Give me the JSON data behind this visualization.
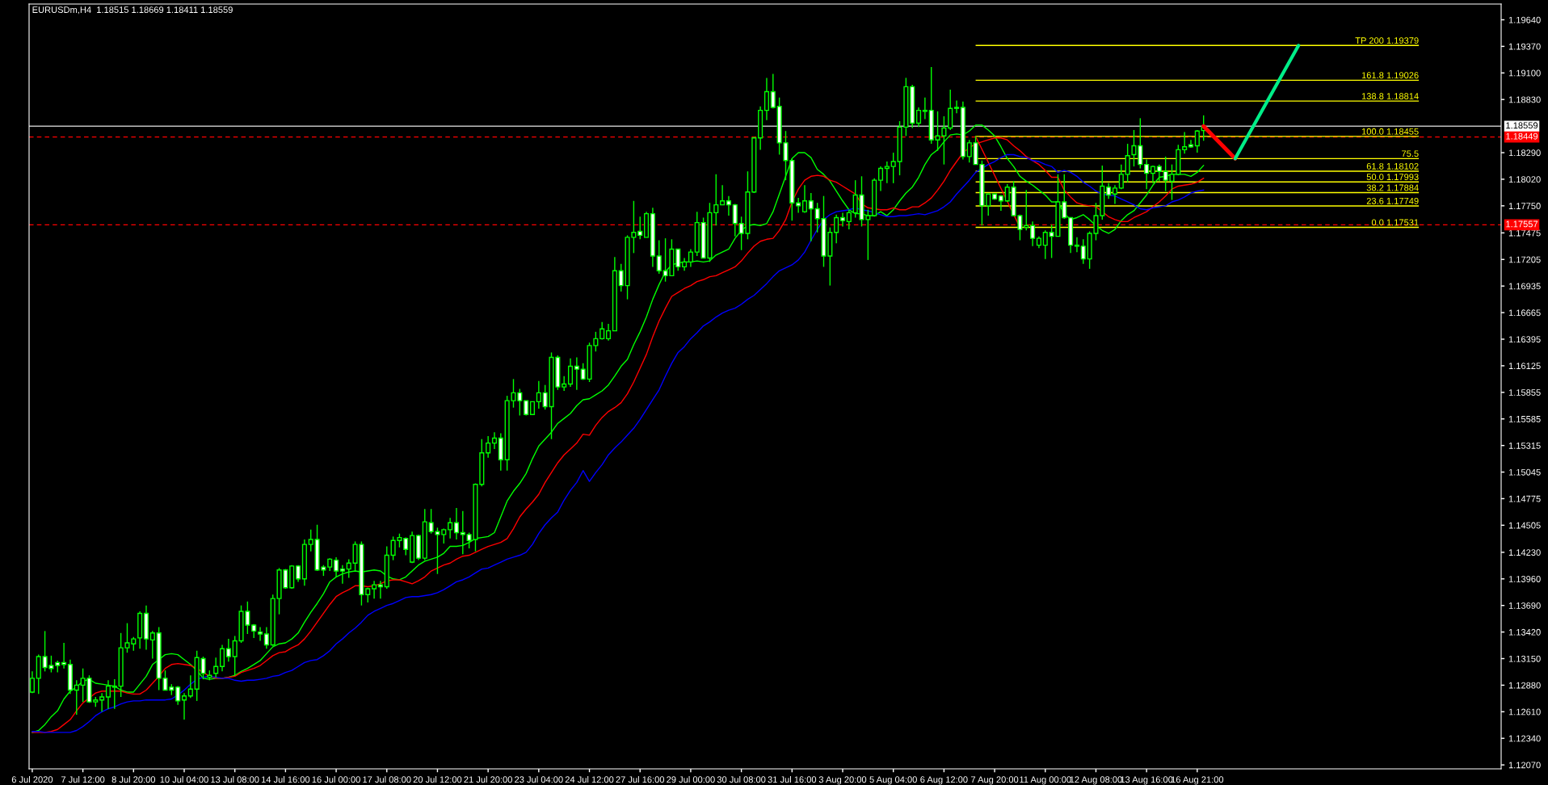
{
  "chart_data": {
    "type": "candlestick",
    "title": "EURUSDm,H4  1.18515 1.18669 1.18411 1.18559",
    "categories": [
      "6 Jul 2020",
      null,
      null,
      null,
      null,
      null,
      null,
      null,
      "7 Jul 12:00",
      null,
      null,
      null,
      null,
      null,
      null,
      null,
      "8 Jul 20:00",
      null,
      null,
      null,
      null,
      null,
      null,
      null,
      "10 Jul 04:00",
      null,
      null,
      null,
      null,
      null,
      null,
      null,
      "13 Jul 08:00",
      null,
      null,
      null,
      null,
      null,
      null,
      null,
      "14 Jul 16:00",
      null,
      null,
      null,
      null,
      null,
      null,
      null,
      "16 Jul 00:00",
      null,
      null,
      null,
      null,
      null,
      null,
      null,
      "17 Jul 08:00",
      null,
      null,
      null,
      null,
      null,
      null,
      null,
      "20 Jul 12:00",
      null,
      null,
      null,
      null,
      null,
      null,
      null,
      "21 Jul 20:00",
      null,
      null,
      null,
      null,
      null,
      null,
      null,
      "23 Jul 04:00",
      null,
      null,
      null,
      null,
      null,
      null,
      null,
      "24 Jul 12:00",
      null,
      null,
      null,
      null,
      null,
      null,
      null,
      "27 Jul 16:00",
      null,
      null,
      null,
      null,
      null,
      null,
      null,
      "29 Jul 00:00",
      null,
      null,
      null,
      null,
      null,
      null,
      null,
      "30 Jul 08:00",
      null,
      null,
      null,
      null,
      null,
      null,
      null,
      "31 Jul 16:00",
      null,
      null,
      null,
      null,
      null,
      null,
      null,
      "3 Aug 20:00",
      null,
      null,
      null,
      null,
      null,
      null,
      null,
      "5 Aug 04:00",
      null,
      null,
      null,
      null,
      null,
      null,
      null,
      "6 Aug 12:00",
      null,
      null,
      null,
      null,
      null,
      null,
      null,
      "7 Aug 20:00",
      null,
      null,
      null,
      null,
      null,
      null,
      null,
      "11 Aug 00:00",
      null,
      null,
      null,
      null,
      null,
      null,
      null,
      "12 Aug 08:00",
      null,
      null,
      null,
      null,
      null,
      null,
      null,
      "13 Aug 16:00",
      null,
      null,
      null,
      null,
      null,
      null,
      null,
      "16 Aug 21:00",
      null
    ],
    "series": [
      {
        "type": "candlestick",
        "color": "#00ff00",
        "ohlc": [
          [
            1.1281,
            1.1302,
            1.128,
            1.1295
          ],
          [
            1.1295,
            1.1319,
            1.1279,
            1.1317
          ],
          [
            1.1317,
            1.1343,
            1.1302,
            1.1306
          ],
          [
            1.1308,
            1.1318,
            1.1301,
            1.1305
          ],
          [
            1.1311,
            1.1313,
            1.1301,
            1.1308
          ],
          [
            1.1311,
            1.1331,
            1.1305,
            1.1309
          ],
          [
            1.1309,
            1.1314,
            1.1279,
            1.1283
          ],
          [
            1.1283,
            1.1293,
            1.1258,
            1.1288
          ],
          [
            1.1288,
            1.1305,
            1.1271,
            1.1295
          ],
          [
            1.1295,
            1.1298,
            1.127,
            1.1271
          ],
          [
            1.1271,
            1.1276,
            1.1266,
            1.1273
          ],
          [
            1.1273,
            1.128,
            1.1261,
            1.1276
          ],
          [
            1.1276,
            1.1293,
            1.1264,
            1.1287
          ],
          [
            1.1287,
            1.1294,
            1.1264,
            1.1286
          ],
          [
            1.1287,
            1.1341,
            1.1276,
            1.1326
          ],
          [
            1.1326,
            1.1351,
            1.1321,
            1.1331
          ],
          [
            1.133,
            1.1337,
            1.1323,
            1.1335
          ],
          [
            1.1336,
            1.1363,
            1.1325,
            1.1361
          ],
          [
            1.1361,
            1.1369,
            1.1324,
            1.1335
          ],
          [
            1.1334,
            1.1343,
            1.1315,
            1.1341
          ],
          [
            1.1341,
            1.1347,
            1.1283,
            1.1295
          ],
          [
            1.1295,
            1.1303,
            1.1283,
            1.1283
          ],
          [
            1.1286,
            1.1289,
            1.1278,
            1.1283
          ],
          [
            1.1286,
            1.1287,
            1.1268,
            1.1272
          ],
          [
            1.1273,
            1.128,
            1.1253,
            1.1277
          ],
          [
            1.1277,
            1.1298,
            1.1275,
            1.1284
          ],
          [
            1.1284,
            1.1323,
            1.1272,
            1.1316
          ],
          [
            1.1315,
            1.1317,
            1.1294,
            1.13
          ],
          [
            1.1296,
            1.1303,
            1.1293,
            1.1298
          ],
          [
            1.13,
            1.1316,
            1.1296,
            1.1307
          ],
          [
            1.1307,
            1.1329,
            1.1302,
            1.1325
          ],
          [
            1.1325,
            1.1335,
            1.1312,
            1.1317
          ],
          [
            1.1317,
            1.1338,
            1.1298,
            1.1333
          ],
          [
            1.1333,
            1.1369,
            1.1331,
            1.1363
          ],
          [
            1.1363,
            1.1373,
            1.134,
            1.1349
          ],
          [
            1.1349,
            1.135,
            1.1336,
            1.1343
          ],
          [
            1.1342,
            1.1347,
            1.1333,
            1.134
          ],
          [
            1.134,
            1.1347,
            1.1325,
            1.1329
          ],
          [
            1.1329,
            1.138,
            1.1328,
            1.1376
          ],
          [
            1.1376,
            1.1407,
            1.136,
            1.1405
          ],
          [
            1.1405,
            1.1406,
            1.1386,
            1.1387
          ],
          [
            1.1387,
            1.141,
            1.1386,
            1.1409
          ],
          [
            1.1409,
            1.141,
            1.1393,
            1.1396
          ],
          [
            1.1396,
            1.1436,
            1.1389,
            1.1431
          ],
          [
            1.1431,
            1.1446,
            1.1424,
            1.1436
          ],
          [
            1.1436,
            1.1451,
            1.1404,
            1.1405
          ],
          [
            1.1408,
            1.141,
            1.1399,
            1.1405
          ],
          [
            1.1408,
            1.1417,
            1.1404,
            1.1416
          ],
          [
            1.1415,
            1.1418,
            1.1398,
            1.1404
          ],
          [
            1.1406,
            1.141,
            1.1391,
            1.1404
          ],
          [
            1.1406,
            1.1416,
            1.1397,
            1.1412
          ],
          [
            1.1412,
            1.1434,
            1.1404,
            1.1431
          ],
          [
            1.1431,
            1.1434,
            1.1369,
            1.138
          ],
          [
            1.138,
            1.1387,
            1.1372,
            1.1386
          ],
          [
            1.1386,
            1.1394,
            1.1376,
            1.139
          ],
          [
            1.139,
            1.1394,
            1.1376,
            1.1388
          ],
          [
            1.1388,
            1.1429,
            1.1386,
            1.142
          ],
          [
            1.142,
            1.1439,
            1.1415,
            1.1435
          ],
          [
            1.1435,
            1.1442,
            1.1428,
            1.1438
          ],
          [
            1.1437,
            1.1438,
            1.142,
            1.1426
          ],
          [
            1.1413,
            1.1444,
            1.1412,
            1.144
          ],
          [
            1.144,
            1.1441,
            1.1415,
            1.1417
          ],
          [
            1.1417,
            1.1467,
            1.1415,
            1.1454
          ],
          [
            1.1453,
            1.1467,
            1.1442,
            1.1444
          ],
          [
            1.1444,
            1.1448,
            1.1401,
            1.1441
          ],
          [
            1.1441,
            1.1447,
            1.1432,
            1.1446
          ],
          [
            1.1446,
            1.1458,
            1.1437,
            1.1453
          ],
          [
            1.1453,
            1.1468,
            1.1436,
            1.1443
          ],
          [
            1.1443,
            1.1465,
            1.1421,
            1.1441
          ],
          [
            1.1441,
            1.1443,
            1.1427,
            1.1435
          ],
          [
            1.1436,
            1.1493,
            1.1424,
            1.1492
          ],
          [
            1.1492,
            1.1538,
            1.149,
            1.1524
          ],
          [
            1.1524,
            1.1541,
            1.1519,
            1.1534
          ],
          [
            1.1534,
            1.1545,
            1.1528,
            1.1539
          ],
          [
            1.1539,
            1.1544,
            1.1506,
            1.1517
          ],
          [
            1.1517,
            1.1582,
            1.1506,
            1.1577
          ],
          [
            1.1577,
            1.1599,
            1.157,
            1.1585
          ],
          [
            1.1585,
            1.1589,
            1.1562,
            1.1577
          ],
          [
            1.1577,
            1.1577,
            1.1562,
            1.1563
          ],
          [
            1.1563,
            1.1576,
            1.1563,
            1.1576
          ],
          [
            1.1576,
            1.1597,
            1.1569,
            1.1585
          ],
          [
            1.1585,
            1.1593,
            1.1568,
            1.1571
          ],
          [
            1.1571,
            1.1626,
            1.1538,
            1.1621
          ],
          [
            1.1621,
            1.1623,
            1.1588,
            1.1591
          ],
          [
            1.1591,
            1.1602,
            1.1587,
            1.1594
          ],
          [
            1.1594,
            1.162,
            1.1591,
            1.1612
          ],
          [
            1.1612,
            1.1621,
            1.1588,
            1.1609
          ],
          [
            1.1609,
            1.1615,
            1.1598,
            1.1599
          ],
          [
            1.1599,
            1.1636,
            1.1596,
            1.1633
          ],
          [
            1.1633,
            1.1647,
            1.1627,
            1.164
          ],
          [
            1.164,
            1.1657,
            1.1639,
            1.165
          ],
          [
            1.164,
            1.1655,
            1.1638,
            1.1648
          ],
          [
            1.1648,
            1.1723,
            1.1648,
            1.1709
          ],
          [
            1.1709,
            1.1716,
            1.1688,
            1.1694
          ],
          [
            1.1694,
            1.1745,
            1.168,
            1.1743
          ],
          [
            1.1743,
            1.178,
            1.1727,
            1.1748
          ],
          [
            1.1749,
            1.1764,
            1.1741,
            1.1745
          ],
          [
            1.1743,
            1.1769,
            1.1743,
            1.1767
          ],
          [
            1.1767,
            1.1773,
            1.1713,
            1.1724
          ],
          [
            1.1724,
            1.174,
            1.1706,
            1.1709
          ],
          [
            1.1709,
            1.1742,
            1.1698,
            1.1704
          ],
          [
            1.1704,
            1.1741,
            1.1704,
            1.1731
          ],
          [
            1.1731,
            1.1731,
            1.1709,
            1.1713
          ],
          [
            1.1713,
            1.1722,
            1.1709,
            1.1718
          ],
          [
            1.1718,
            1.1731,
            1.1713,
            1.1728
          ],
          [
            1.1728,
            1.1769,
            1.1724,
            1.1758
          ],
          [
            1.1758,
            1.1763,
            1.1722,
            1.1722
          ],
          [
            1.1722,
            1.1778,
            1.1718,
            1.1768
          ],
          [
            1.1768,
            1.1807,
            1.1755,
            1.1776
          ],
          [
            1.1776,
            1.1796,
            1.1776,
            1.178
          ],
          [
            1.178,
            1.1785,
            1.1765,
            1.1776
          ],
          [
            1.1776,
            1.1777,
            1.1744,
            1.1757
          ],
          [
            1.1757,
            1.1764,
            1.173,
            1.1747
          ],
          [
            1.1747,
            1.181,
            1.1741,
            1.1789
          ],
          [
            1.1789,
            1.1845,
            1.1788,
            1.1844
          ],
          [
            1.1844,
            1.1876,
            1.1832,
            1.1872
          ],
          [
            1.1872,
            1.1905,
            1.1862,
            1.1891
          ],
          [
            1.1891,
            1.1909,
            1.1874,
            1.1875
          ],
          [
            1.1876,
            1.1885,
            1.1827,
            1.1839
          ],
          [
            1.1839,
            1.1851,
            1.1801,
            1.1821
          ],
          [
            1.1821,
            1.1823,
            1.176,
            1.1778
          ],
          [
            1.1778,
            1.1783,
            1.1768,
            1.1775
          ],
          [
            1.1769,
            1.1796,
            1.1768,
            1.178
          ],
          [
            1.178,
            1.1788,
            1.1739,
            1.1772
          ],
          [
            1.1772,
            1.1778,
            1.1748,
            1.1762
          ],
          [
            1.1762,
            1.1785,
            1.1713,
            1.1724
          ],
          [
            1.1724,
            1.1753,
            1.1694,
            1.1748
          ],
          [
            1.1748,
            1.1766,
            1.1737,
            1.1763
          ],
          [
            1.1763,
            1.1768,
            1.1754,
            1.176
          ],
          [
            1.1759,
            1.1771,
            1.1751,
            1.1768
          ],
          [
            1.1768,
            1.1801,
            1.1763,
            1.1786
          ],
          [
            1.1786,
            1.1805,
            1.1754,
            1.1761
          ],
          [
            1.1761,
            1.1771,
            1.172,
            1.1765
          ],
          [
            1.1765,
            1.1803,
            1.1764,
            1.1801
          ],
          [
            1.1801,
            1.1815,
            1.179,
            1.1813
          ],
          [
            1.1813,
            1.182,
            1.1798,
            1.1815
          ],
          [
            1.1815,
            1.1829,
            1.1798,
            1.182
          ],
          [
            1.182,
            1.1861,
            1.1806,
            1.1855
          ],
          [
            1.1855,
            1.1905,
            1.1846,
            1.1896
          ],
          [
            1.1896,
            1.1898,
            1.1854,
            1.1859
          ],
          [
            1.1859,
            1.1875,
            1.1855,
            1.1872
          ],
          [
            1.1871,
            1.1885,
            1.1863,
            1.1872
          ],
          [
            1.1872,
            1.1916,
            1.1838,
            1.1842
          ],
          [
            1.1842,
            1.1871,
            1.1831,
            1.1846
          ],
          [
            1.1846,
            1.1866,
            1.1817,
            1.1854
          ],
          [
            1.1854,
            1.1893,
            1.1852,
            1.1874
          ],
          [
            1.1874,
            1.1882,
            1.1869,
            1.1875
          ],
          [
            1.1875,
            1.1881,
            1.1822,
            1.1825
          ],
          [
            1.1825,
            1.1842,
            1.1819,
            1.1839
          ],
          [
            1.1839,
            1.1846,
            1.1817,
            1.1817
          ],
          [
            1.1817,
            1.1821,
            1.1755,
            1.1775
          ],
          [
            1.1775,
            1.1787,
            1.1765,
            1.1787
          ],
          [
            1.1787,
            1.1787,
            1.1781,
            1.1782
          ],
          [
            1.1785,
            1.1786,
            1.177,
            1.178
          ],
          [
            1.178,
            1.1797,
            1.1779,
            1.1794
          ],
          [
            1.1794,
            1.18,
            1.1765,
            1.1765
          ],
          [
            1.1765,
            1.1766,
            1.174,
            1.1751
          ],
          [
            1.1753,
            1.1791,
            1.175,
            1.1755
          ],
          [
            1.1755,
            1.1759,
            1.1734,
            1.1742
          ],
          [
            1.1735,
            1.1744,
            1.1732,
            1.1742
          ],
          [
            1.1735,
            1.175,
            1.1721,
            1.1748
          ],
          [
            1.1748,
            1.1756,
            1.1722,
            1.1744
          ],
          [
            1.1744,
            1.1807,
            1.1744,
            1.1779
          ],
          [
            1.1779,
            1.1807,
            1.1762,
            1.1763
          ],
          [
            1.1763,
            1.1763,
            1.1727,
            1.1735
          ],
          [
            1.1734,
            1.1743,
            1.1728,
            1.1735
          ],
          [
            1.1734,
            1.1741,
            1.1716,
            1.1721
          ],
          [
            1.1721,
            1.1749,
            1.1711,
            1.1747
          ],
          [
            1.1747,
            1.1778,
            1.174,
            1.1765
          ],
          [
            1.1765,
            1.1816,
            1.1761,
            1.1795
          ],
          [
            1.1794,
            1.1798,
            1.1782,
            1.1786
          ],
          [
            1.1787,
            1.1796,
            1.1777,
            1.1793
          ],
          [
            1.1793,
            1.1817,
            1.1792,
            1.1807
          ],
          [
            1.1807,
            1.1838,
            1.1799,
            1.1826
          ],
          [
            1.1827,
            1.1852,
            1.1815,
            1.1836
          ],
          [
            1.1836,
            1.1864,
            1.1813,
            1.1817
          ],
          [
            1.1817,
            1.1822,
            1.1792,
            1.1808
          ],
          [
            1.1808,
            1.1816,
            1.1798,
            1.1815
          ],
          [
            1.1815,
            1.1817,
            1.18,
            1.181
          ],
          [
            1.181,
            1.1825,
            1.179,
            1.1801
          ],
          [
            1.18,
            1.1817,
            1.1781,
            1.1807
          ],
          [
            1.1807,
            1.1837,
            1.1806,
            1.1832
          ],
          [
            1.1832,
            1.185,
            1.1828,
            1.1835
          ],
          [
            1.1837,
            1.1842,
            1.1834,
            1.1835
          ],
          [
            1.1836,
            1.1852,
            1.1829,
            1.1851
          ],
          [
            1.18515,
            1.18669,
            1.18411,
            1.18559
          ]
        ]
      },
      {
        "type": "line",
        "color": "#00ff00",
        "values": [
          1.124,
          1.1242,
          1.1248,
          1.1256,
          1.1262,
          1.1274,
          1.1282,
          1.1286,
          1.1292,
          1.1294,
          1.129,
          1.1289,
          1.1288,
          1.1287,
          1.1283,
          1.1281,
          1.1281,
          1.1289,
          1.1297,
          1.1309,
          1.1314,
          1.1319,
          1.132,
          1.1319,
          1.1314,
          1.1309,
          1.1303,
          1.1295,
          1.1294,
          1.1295,
          1.1295,
          1.1296,
          1.1298,
          1.1302,
          1.1305,
          1.1309,
          1.1313,
          1.132,
          1.1327,
          1.133,
          1.1331,
          1.1335,
          1.1341,
          1.1352,
          1.1362,
          1.1371,
          1.1381,
          1.1393,
          1.1398,
          1.1401,
          1.1403,
          1.1404,
          1.1403,
          1.1404,
          1.1405,
          1.1404,
          1.1399,
          1.1396,
          1.1395,
          1.1398,
          1.1404,
          1.141,
          1.1414,
          1.1416,
          1.1418,
          1.1422,
          1.1429,
          1.1429,
          1.143,
          1.1433,
          1.1437,
          1.1438,
          1.1439,
          1.1443,
          1.1459,
          1.1475,
          1.1485,
          1.1493,
          1.1503,
          1.1518,
          1.1531,
          1.1538,
          1.1545,
          1.1554,
          1.1559,
          1.1564,
          1.1572,
          1.1578,
          1.1579,
          1.1583,
          1.1587,
          1.1593,
          1.1602,
          1.1612,
          1.1619,
          1.1634,
          1.1647,
          1.1662,
          1.168,
          1.1695,
          1.1708,
          1.1715,
          1.1717,
          1.1718,
          1.1718,
          1.1719,
          1.1718,
          1.1719,
          1.1725,
          1.1728,
          1.1731,
          1.1742,
          1.175,
          1.1755,
          1.1756,
          1.1755,
          1.1757,
          1.1769,
          1.1787,
          1.1805,
          1.1823,
          1.1829,
          1.1829,
          1.1824,
          1.1812,
          1.1807,
          1.18,
          1.179,
          1.178,
          1.1771,
          1.1767,
          1.1767,
          1.1765,
          1.1765,
          1.1769,
          1.1765,
          1.1771,
          1.178,
          1.1788,
          1.1794,
          1.1804,
          1.1817,
          1.1827,
          1.1832,
          1.184,
          1.1847,
          1.1848,
          1.1847,
          1.1851,
          1.1857,
          1.1857,
          1.1852,
          1.1846,
          1.1835,
          1.1823,
          1.1815,
          1.1805,
          1.18,
          1.1796,
          1.1791,
          1.1786,
          1.1779,
          1.1779,
          1.1767,
          1.1761,
          1.1763,
          1.1766,
          1.1761,
          1.1755,
          1.175,
          1.1747,
          1.1751,
          1.176,
          1.1766,
          1.177,
          1.1778,
          1.1786,
          1.1796,
          1.1804,
          1.1805,
          1.1807,
          1.1807,
          1.1807,
          1.1805,
          1.1809,
          1.1816
        ]
      },
      {
        "type": "line",
        "color": "#ff0000",
        "values": [
          1.124,
          1.124,
          1.124,
          1.1241,
          1.1243,
          1.1248,
          1.1253,
          1.1262,
          1.127,
          1.1275,
          1.128,
          1.1282,
          1.1282,
          1.1282,
          1.1282,
          1.128,
          1.1279,
          1.1279,
          1.1283,
          1.129,
          1.1297,
          1.1305,
          1.1309,
          1.131,
          1.1309,
          1.1308,
          1.1305,
          1.1301,
          1.1297,
          1.1295,
          1.1295,
          1.1296,
          1.1297,
          1.1301,
          1.1303,
          1.1305,
          1.1308,
          1.1313,
          1.1318,
          1.1321,
          1.1322,
          1.1326,
          1.1329,
          1.1335,
          1.1343,
          1.1352,
          1.1361,
          1.137,
          1.1378,
          1.1382,
          1.1385,
          1.1389,
          1.1389,
          1.1388,
          1.1389,
          1.1391,
          1.1394,
          1.1395,
          1.1395,
          1.1393,
          1.1391,
          1.1394,
          1.1398,
          1.1404,
          1.1407,
          1.141,
          1.1412,
          1.1416,
          1.1419,
          1.142,
          1.1423,
          1.1426,
          1.1429,
          1.1431,
          1.1433,
          1.1437,
          1.1447,
          1.1459,
          1.1467,
          1.1474,
          1.1482,
          1.1494,
          1.1504,
          1.1514,
          1.1522,
          1.1528,
          1.1534,
          1.1543,
          1.1542,
          1.1552,
          1.156,
          1.1566,
          1.157,
          1.1575,
          1.1584,
          1.1596,
          1.161,
          1.1624,
          1.1642,
          1.1658,
          1.1671,
          1.1683,
          1.1687,
          1.1691,
          1.1694,
          1.1698,
          1.17,
          1.1703,
          1.1704,
          1.1707,
          1.171,
          1.1713,
          1.1719,
          1.1727,
          1.1734,
          1.1739,
          1.1741,
          1.1742,
          1.175,
          1.1761,
          1.1779,
          1.1792,
          1.1801,
          1.1805,
          1.1806,
          1.1805,
          1.1801,
          1.1799,
          1.1795,
          1.1791,
          1.1787,
          1.1777,
          1.1773,
          1.1772,
          1.1771,
          1.1771,
          1.1773,
          1.1771,
          1.1771,
          1.1774,
          1.1774,
          1.1778,
          1.1783,
          1.1791,
          1.18,
          1.1811,
          1.182,
          1.1829,
          1.1834,
          1.1838,
          1.184,
          1.1842,
          1.1844,
          1.1844,
          1.1842,
          1.1836,
          1.1831,
          1.1825,
          1.1821,
          1.1817,
          1.1811,
          1.1804,
          1.1804,
          1.1791,
          1.1784,
          1.1778,
          1.1776,
          1.1775,
          1.1774,
          1.1769,
          1.1764,
          1.1761,
          1.1759,
          1.1759,
          1.1763,
          1.1766,
          1.1769,
          1.1774,
          1.1779,
          1.1785,
          1.1792,
          1.1795,
          1.1796,
          1.1797,
          1.1799,
          1.1803
        ]
      },
      {
        "type": "line",
        "color": "#0000ff",
        "values": [
          1.1241,
          1.1241,
          1.124,
          1.124,
          1.124,
          1.124,
          1.124,
          1.1242,
          1.1246,
          1.1251,
          1.1257,
          1.1261,
          1.1264,
          1.1266,
          1.1269,
          1.1271,
          1.1272,
          1.1272,
          1.1273,
          1.1273,
          1.1273,
          1.1273,
          1.1274,
          1.1278,
          1.1283,
          1.1289,
          1.1294,
          1.1296,
          1.1297,
          1.1296,
          1.1295,
          1.1295,
          1.1293,
          1.1292,
          1.1293,
          1.1293,
          1.1294,
          1.1295,
          1.1297,
          1.1298,
          1.1301,
          1.1303,
          1.1307,
          1.1311,
          1.1313,
          1.1314,
          1.1318,
          1.1323,
          1.133,
          1.1335,
          1.1341,
          1.1346,
          1.1352,
          1.1359,
          1.1363,
          1.1366,
          1.1369,
          1.1371,
          1.1374,
          1.1377,
          1.1378,
          1.1378,
          1.1379,
          1.138,
          1.1382,
          1.1385,
          1.1389,
          1.1393,
          1.1395,
          1.1398,
          1.1402,
          1.1406,
          1.1407,
          1.141,
          1.1413,
          1.1416,
          1.1418,
          1.142,
          1.1423,
          1.1431,
          1.1442,
          1.1451,
          1.1458,
          1.1464,
          1.1476,
          1.1486,
          1.1494,
          1.1506,
          1.1495,
          1.1504,
          1.1512,
          1.1522,
          1.1529,
          1.1535,
          1.1542,
          1.1549,
          1.1558,
          1.1568,
          1.1578,
          1.1588,
          1.1602,
          1.1615,
          1.1626,
          1.1632,
          1.164,
          1.1646,
          1.1653,
          1.1657,
          1.1662,
          1.1666,
          1.1669,
          1.1671,
          1.1675,
          1.168,
          1.1684,
          1.169,
          1.1696,
          1.1703,
          1.1709,
          1.1712,
          1.1715,
          1.172,
          1.1728,
          1.174,
          1.1751,
          1.1761,
          1.1766,
          1.1769,
          1.177,
          1.1771,
          1.1773,
          1.1771,
          1.177,
          1.1768,
          1.1766,
          1.1764,
          1.1764,
          1.1765,
          1.1765,
          1.1766,
          1.1767,
          1.1766,
          1.1768,
          1.177,
          1.1774,
          1.1779,
          1.1787,
          1.1794,
          1.1801,
          1.1809,
          1.1813,
          1.1817,
          1.182,
          1.1824,
          1.1827,
          1.1827,
          1.1825,
          1.1824,
          1.1821,
          1.182,
          1.1817,
          1.1815,
          1.1809,
          1.1811,
          1.1809,
          1.1805,
          1.1799,
          1.1795,
          1.179,
          1.1787,
          1.1786,
          1.1785,
          1.1782,
          1.1779,
          1.1776,
          1.1772,
          1.1771,
          1.1773,
          1.1774,
          1.1775,
          1.1779,
          1.1781,
          1.1784,
          1.1788,
          1.179,
          1.1791
        ]
      }
    ],
    "ylim": [
      1.1203,
      1.198
    ],
    "yticks": [
      {
        "value": 1.1964,
        "label": "1.19640"
      },
      {
        "value": 1.1937,
        "label": "1.19370"
      },
      {
        "value": 1.191,
        "label": "1.19100"
      },
      {
        "value": 1.1883,
        "label": "1.18830"
      },
      {
        "value": 1.1829,
        "label": "1.18290"
      },
      {
        "value": 1.1802,
        "label": "1.18020"
      },
      {
        "value": 1.1775,
        "label": "1.17750"
      },
      1.17475,
      1.17205,
      1.16935,
      1.16665,
      1.16395,
      1.16125,
      1.15855,
      1.15585,
      1.15315,
      1.15045,
      1.14775,
      1.14505,
      {
        "value": 1.1423,
        "label": "1.14230"
      },
      {
        "value": 1.1396,
        "label": "1.13960"
      },
      {
        "value": 1.1369,
        "label": "1.13690"
      },
      {
        "value": 1.1342,
        "label": "1.13420"
      },
      {
        "value": 1.1315,
        "label": "1.13150"
      },
      {
        "value": 1.1288,
        "label": "1.12880"
      },
      {
        "value": 1.1261,
        "label": "1.12610"
      },
      {
        "value": 1.1234,
        "label": "1.12340"
      },
      {
        "value": 1.1207,
        "label": "1.12070"
      }
    ],
    "ref_lines": [
      {
        "axis": "y",
        "value": 1.19379,
        "label": "TP 200 1.19379",
        "color": "#ffff00",
        "line_style": "solid"
      },
      {
        "axis": "y",
        "value": 1.19026,
        "label": "161.8 1.19026",
        "color": "#ffff00",
        "line_style": "solid"
      },
      {
        "axis": "y",
        "value": 1.18814,
        "label": "138.8 1.18814",
        "color": "#ffff00",
        "line_style": "solid"
      },
      {
        "axis": "y",
        "value": 1.18455,
        "label": "100.0 1.18455",
        "color": "#ffff00",
        "line_style": "solid"
      },
      {
        "axis": "y",
        "value": 1.1823,
        "color": "#ffff00",
        "line_style": "solid"
      },
      {
        "axis": "y",
        "value": 1.18102,
        "label": "61.8 1.18102",
        "color": "#ffff00",
        "line_style": "solid"
      },
      {
        "axis": "y",
        "value": 1.17993,
        "label": "50.0 1.17993",
        "color": "#ffff00",
        "line_style": "solid"
      },
      {
        "axis": "y",
        "value": 1.17884,
        "label": "38.2 1.17884",
        "color": "#ffff00",
        "line_style": "solid"
      },
      {
        "axis": "y",
        "value": 1.17749,
        "label": "23.6 1.17749",
        "color": "#ffff00",
        "line_style": "solid"
      },
      {
        "axis": "y",
        "value": 1.17531,
        "label": "0.0 1.17531",
        "color": "#ffff00",
        "line_style": "solid"
      },
      {
        "axis": "y",
        "value": 1.18559,
        "label": "1.18559",
        "color": "#c0c0c0",
        "line_style": "solid"
      },
      {
        "axis": "y",
        "value": 1.18449,
        "label": "1.18449",
        "color": "#ff0000",
        "line_style": "dashed"
      },
      {
        "axis": "y",
        "value": 1.17557,
        "label": "1.17557",
        "color": "#ff0000",
        "line_style": "dashed"
      }
    ],
    "annotations": [
      {
        "text": "75.5",
        "y": 1.1823
      }
    ]
  }
}
